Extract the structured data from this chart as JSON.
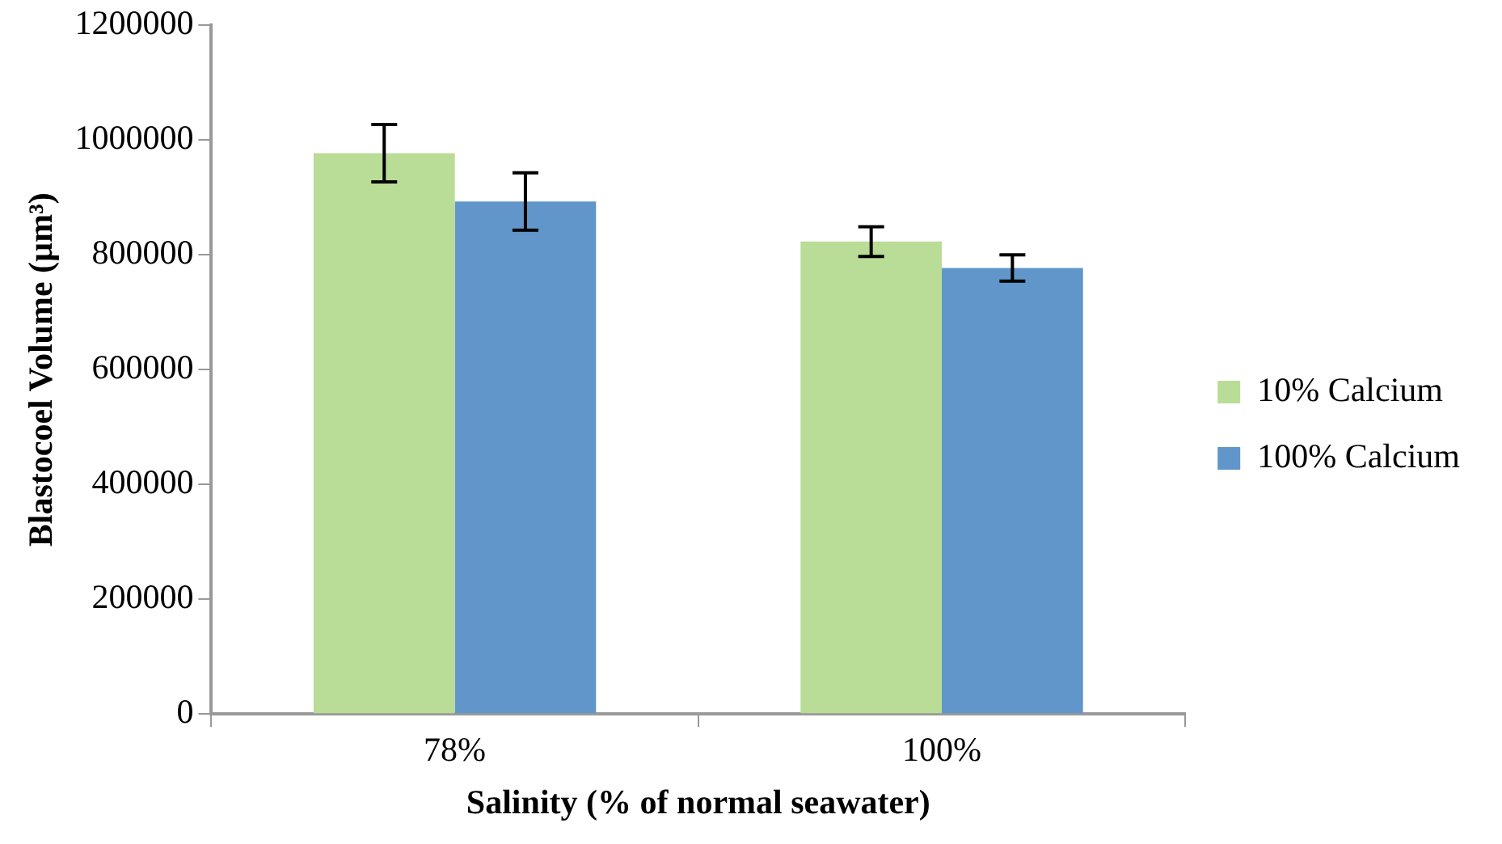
{
  "chart_data": {
    "type": "bar",
    "xlabel": "Salinity (% of normal seawater)",
    "ylabel": "Blastocoel Volume (µm³)",
    "categories": [
      "78%",
      "100%"
    ],
    "series": [
      {
        "name": "10% Calcium",
        "color": "#b9dc96",
        "values": [
          977000,
          823000
        ],
        "errors": [
          50000,
          26000
        ]
      },
      {
        "name": "100% Calcium",
        "color": "#6096c9",
        "values": [
          893000,
          777000
        ],
        "errors": [
          50000,
          23000
        ]
      }
    ],
    "ylim": [
      0,
      1200000
    ],
    "yticks": [
      0,
      200000,
      400000,
      600000,
      800000,
      1000000,
      1200000
    ],
    "grid": false,
    "legend": "right"
  }
}
